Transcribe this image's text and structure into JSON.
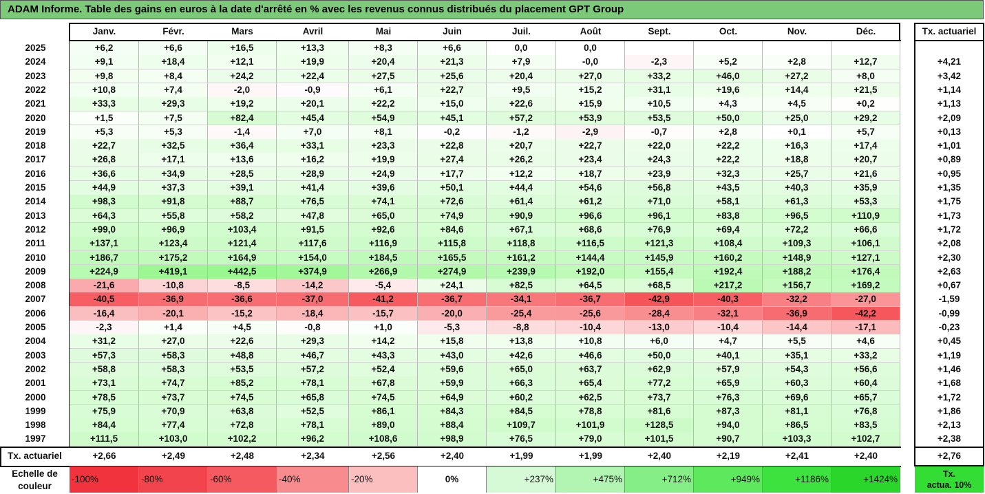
{
  "title": "ADAM Informe. Table des gains en euros à la date d'arrêté en % avec les revenus connus distribués du placement GPT Group",
  "months": [
    "Janv.",
    "Févr.",
    "Mars",
    "Avril",
    "Mai",
    "Juin",
    "Juil.",
    "Août",
    "Sept.",
    "Oct.",
    "Nov.",
    "Déc."
  ],
  "ta_header": "Tx. actuariel",
  "rows": [
    {
      "year": "2025",
      "values": [
        "+6,2",
        "+6,6",
        "+16,5",
        "+13,3",
        "+8,3",
        "+6,6",
        "0,0",
        "0,0",
        "",
        "",
        "",
        ""
      ],
      "ta": ""
    },
    {
      "year": "2024",
      "values": [
        "+9,1",
        "+18,4",
        "+12,1",
        "+19,9",
        "+20,4",
        "+21,3",
        "+7,9",
        "-0,0",
        "-2,3",
        "+5,2",
        "+2,8",
        "+12,7"
      ],
      "ta": "+4,21"
    },
    {
      "year": "2023",
      "values": [
        "+9,8",
        "+8,4",
        "+24,2",
        "+22,4",
        "+27,5",
        "+25,6",
        "+20,4",
        "+27,0",
        "+33,2",
        "+46,0",
        "+27,2",
        "+8,0"
      ],
      "ta": "+3,42"
    },
    {
      "year": "2022",
      "values": [
        "+10,8",
        "+7,4",
        "-2,0",
        "-0,9",
        "+6,1",
        "+22,7",
        "+9,5",
        "+15,2",
        "+31,1",
        "+19,6",
        "+14,4",
        "+21,5"
      ],
      "ta": "+1,14"
    },
    {
      "year": "2021",
      "values": [
        "+33,3",
        "+29,3",
        "+19,2",
        "+20,1",
        "+22,2",
        "+15,0",
        "+22,6",
        "+15,9",
        "+10,5",
        "+4,3",
        "+4,5",
        "+0,2"
      ],
      "ta": "+1,13"
    },
    {
      "year": "2020",
      "values": [
        "+1,5",
        "+7,5",
        "+82,4",
        "+45,4",
        "+54,9",
        "+45,1",
        "+57,2",
        "+53,9",
        "+53,5",
        "+50,0",
        "+25,0",
        "+29,2"
      ],
      "ta": "+2,09"
    },
    {
      "year": "2019",
      "values": [
        "+5,3",
        "+5,3",
        "-1,4",
        "+7,0",
        "+8,1",
        "-0,2",
        "-1,2",
        "-2,9",
        "-0,7",
        "+2,8",
        "+0,1",
        "+5,7"
      ],
      "ta": "+0,13"
    },
    {
      "year": "2018",
      "values": [
        "+22,7",
        "+32,5",
        "+36,4",
        "+33,1",
        "+23,3",
        "+22,8",
        "+20,7",
        "+22,7",
        "+22,0",
        "+22,2",
        "+16,3",
        "+17,4"
      ],
      "ta": "+1,01"
    },
    {
      "year": "2017",
      "values": [
        "+26,8",
        "+17,1",
        "+13,6",
        "+16,2",
        "+19,9",
        "+27,4",
        "+26,2",
        "+23,4",
        "+24,3",
        "+22,2",
        "+18,8",
        "+20,7"
      ],
      "ta": "+0,89"
    },
    {
      "year": "2016",
      "values": [
        "+36,6",
        "+34,9",
        "+28,5",
        "+28,9",
        "+24,9",
        "+17,7",
        "+12,2",
        "+18,7",
        "+23,9",
        "+32,3",
        "+25,7",
        "+21,6"
      ],
      "ta": "+0,95"
    },
    {
      "year": "2015",
      "values": [
        "+44,9",
        "+37,3",
        "+39,1",
        "+41,4",
        "+39,6",
        "+50,1",
        "+44,4",
        "+54,6",
        "+56,8",
        "+43,5",
        "+40,3",
        "+35,9"
      ],
      "ta": "+1,35"
    },
    {
      "year": "2014",
      "values": [
        "+98,3",
        "+91,8",
        "+88,7",
        "+76,5",
        "+74,1",
        "+72,6",
        "+61,4",
        "+61,2",
        "+71,0",
        "+58,1",
        "+61,3",
        "+53,3"
      ],
      "ta": "+1,75"
    },
    {
      "year": "2013",
      "values": [
        "+64,3",
        "+55,8",
        "+58,2",
        "+47,8",
        "+65,0",
        "+74,9",
        "+90,9",
        "+96,6",
        "+96,1",
        "+83,8",
        "+96,5",
        "+110,9"
      ],
      "ta": "+1,73"
    },
    {
      "year": "2012",
      "values": [
        "+99,0",
        "+96,9",
        "+103,4",
        "+91,5",
        "+92,6",
        "+84,6",
        "+67,1",
        "+68,6",
        "+76,9",
        "+69,4",
        "+72,2",
        "+66,6"
      ],
      "ta": "+1,72"
    },
    {
      "year": "2011",
      "values": [
        "+137,1",
        "+123,4",
        "+121,4",
        "+117,6",
        "+116,9",
        "+115,8",
        "+118,8",
        "+116,5",
        "+121,3",
        "+108,4",
        "+109,3",
        "+106,1"
      ],
      "ta": "+2,08"
    },
    {
      "year": "2010",
      "values": [
        "+186,7",
        "+175,2",
        "+164,9",
        "+154,0",
        "+184,5",
        "+165,5",
        "+161,2",
        "+144,4",
        "+145,9",
        "+160,2",
        "+148,9",
        "+127,1"
      ],
      "ta": "+2,30"
    },
    {
      "year": "2009",
      "values": [
        "+224,9",
        "+419,1",
        "+442,5",
        "+374,9",
        "+266,9",
        "+274,9",
        "+239,9",
        "+192,0",
        "+155,4",
        "+192,4",
        "+188,2",
        "+176,4"
      ],
      "ta": "+2,63"
    },
    {
      "year": "2008",
      "values": [
        "-21,6",
        "-10,8",
        "-8,5",
        "-14,2",
        "-5,4",
        "+24,1",
        "+82,5",
        "+64,5",
        "+68,5",
        "+217,2",
        "+156,7",
        "+169,2"
      ],
      "ta": "+0,67"
    },
    {
      "year": "2007",
      "values": [
        "-40,5",
        "-36,9",
        "-36,6",
        "-37,0",
        "-41,2",
        "-36,7",
        "-34,1",
        "-36,7",
        "-42,9",
        "-40,3",
        "-32,2",
        "-27,0"
      ],
      "ta": "-1,59"
    },
    {
      "year": "2006",
      "values": [
        "-16,4",
        "-20,1",
        "-15,2",
        "-18,4",
        "-15,7",
        "-20,0",
        "-25,4",
        "-25,6",
        "-28,4",
        "-32,1",
        "-36,9",
        "-42,2"
      ],
      "ta": "-0,99"
    },
    {
      "year": "2005",
      "values": [
        "-2,3",
        "+1,4",
        "+4,5",
        "-0,8",
        "+1,0",
        "-5,3",
        "-8,8",
        "-10,4",
        "-13,0",
        "-10,4",
        "-14,4",
        "-17,1"
      ],
      "ta": "-0,23"
    },
    {
      "year": "2004",
      "values": [
        "+31,2",
        "+27,0",
        "+22,6",
        "+29,3",
        "+14,2",
        "+15,8",
        "+13,8",
        "+10,8",
        "+6,0",
        "+4,7",
        "+5,5",
        "+4,6"
      ],
      "ta": "+0,45"
    },
    {
      "year": "2003",
      "values": [
        "+57,3",
        "+58,3",
        "+48,8",
        "+46,7",
        "+43,3",
        "+43,0",
        "+42,6",
        "+46,6",
        "+50,0",
        "+40,1",
        "+35,1",
        "+33,2"
      ],
      "ta": "+1,19"
    },
    {
      "year": "2002",
      "values": [
        "+58,8",
        "+58,3",
        "+53,5",
        "+57,2",
        "+52,4",
        "+59,6",
        "+65,0",
        "+63,7",
        "+62,9",
        "+57,9",
        "+54,3",
        "+56,6"
      ],
      "ta": "+1,46"
    },
    {
      "year": "2001",
      "values": [
        "+73,1",
        "+74,7",
        "+85,2",
        "+78,1",
        "+67,8",
        "+59,9",
        "+66,3",
        "+65,4",
        "+77,2",
        "+65,9",
        "+60,3",
        "+60,4"
      ],
      "ta": "+1,68"
    },
    {
      "year": "2000",
      "values": [
        "+78,5",
        "+73,7",
        "+74,5",
        "+65,8",
        "+74,5",
        "+64,9",
        "+60,2",
        "+62,5",
        "+73,7",
        "+76,3",
        "+69,6",
        "+65,7"
      ],
      "ta": "+1,72"
    },
    {
      "year": "1999",
      "values": [
        "+75,9",
        "+70,9",
        "+63,8",
        "+52,5",
        "+86,1",
        "+84,3",
        "+84,5",
        "+78,8",
        "+81,6",
        "+87,3",
        "+81,1",
        "+76,8"
      ],
      "ta": "+1,86"
    },
    {
      "year": "1998",
      "values": [
        "+84,4",
        "+77,4",
        "+72,8",
        "+78,1",
        "+89,0",
        "+88,4",
        "+109,7",
        "+101,9",
        "+128,5",
        "+94,0",
        "+86,5",
        "+83,5"
      ],
      "ta": "+2,13"
    },
    {
      "year": "1997",
      "values": [
        "+111,5",
        "+103,0",
        "+102,2",
        "+96,2",
        "+108,6",
        "+98,9",
        "+76,5",
        "+79,0",
        "+101,5",
        "+90,7",
        "+103,3",
        "+102,7"
      ],
      "ta": "+2,38"
    }
  ],
  "ta_row": {
    "label": "Tx. actuariel",
    "values": [
      "+2,66",
      "+2,49",
      "+2,48",
      "+2,34",
      "+2,56",
      "+2,40",
      "+1,99",
      "+1,99",
      "+2,40",
      "+2,19",
      "+2,41",
      "+2,40"
    ],
    "total": "+2,76"
  },
  "scale": {
    "label_line1": "Echelle de",
    "label_line2": "couleur",
    "items": [
      {
        "text": "-100%",
        "color": "#f0333d",
        "align": "left"
      },
      {
        "text": "-80%",
        "color": "#f2444d",
        "align": "left"
      },
      {
        "text": "-60%",
        "color": "#f55a60",
        "align": "left"
      },
      {
        "text": "-40%",
        "color": "#f88b8e",
        "align": "left"
      },
      {
        "text": "-20%",
        "color": "#fcbfc0",
        "align": "left"
      },
      {
        "text": "0%",
        "color": "#ffffff",
        "align": "center"
      },
      {
        "text": "+237%",
        "color": "#d6fad6",
        "align": "right"
      },
      {
        "text": "+475%",
        "color": "#b2f5b2",
        "align": "right"
      },
      {
        "text": "+712%",
        "color": "#86ee86",
        "align": "right"
      },
      {
        "text": "+949%",
        "color": "#5ee85e",
        "align": "right"
      },
      {
        "text": "+1186%",
        "color": "#3ee23e",
        "align": "right"
      },
      {
        "text": "+1424%",
        "color": "#2ad62a",
        "align": "right"
      }
    ],
    "ta_line1": "Tx.",
    "ta_line2": "actua. 10%",
    "ta_color": "#33dd33"
  }
}
